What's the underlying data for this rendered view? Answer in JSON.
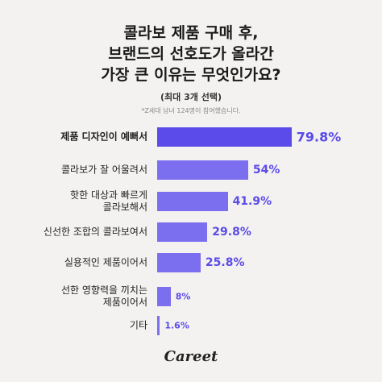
{
  "chart_data": {
    "type": "bar",
    "title": "콜라보 제품 구매 후,\n브랜드의 선호도가 올라간\n가장 큰 이유는 무엇인가요?",
    "subtitle": "(최대 3개 선택)",
    "note": "*Z세대 남녀 124명이 참여했습니다.",
    "categories": [
      "제품 디자인이 예뻐서",
      "콜라보가 잘 어울려서",
      "핫한 대상과 빠르게\n콜라보해서",
      "신선한 조합의 콜라보여서",
      "실용적인 제품이어서",
      "선한 영향력을 끼치는\n제품이어서",
      "기타"
    ],
    "values": [
      79.8,
      54,
      41.9,
      29.8,
      25.8,
      8,
      1.6
    ],
    "value_labels": [
      "79.8%",
      "54%",
      "41.9%",
      "29.8%",
      "25.8%",
      "8%",
      "1.6%"
    ],
    "colors": [
      "#5a4bea",
      "#7b6ff0",
      "#7b6ff0",
      "#7b6ff0",
      "#7b6ff0",
      "#7b6ff0",
      "#7b6ff0"
    ],
    "logo": "Careet"
  }
}
